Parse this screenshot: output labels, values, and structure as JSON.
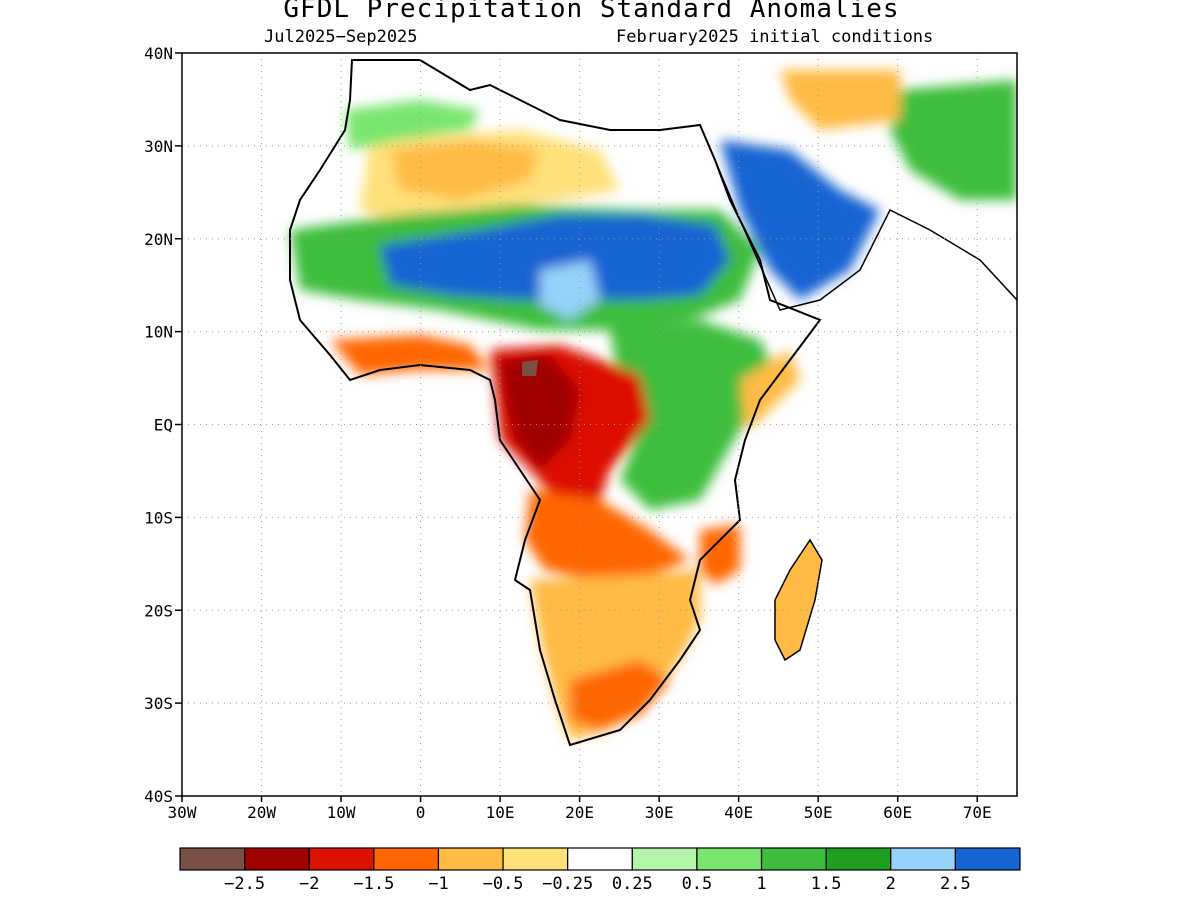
{
  "title": "GFDL Precipitation Standard Anomalies",
  "subtitle_left": "Jul2025−Sep2025",
  "subtitle_right": "February2025 initial conditions",
  "map": {
    "lon_range": [
      -30,
      75
    ],
    "lat_range": [
      -40,
      40
    ],
    "grid": "dotted",
    "lat_ticks": [
      {
        "value": 40,
        "label": "40N"
      },
      {
        "value": 30,
        "label": "30N"
      },
      {
        "value": 20,
        "label": "20N"
      },
      {
        "value": 10,
        "label": "10N"
      },
      {
        "value": 0,
        "label": "EQ"
      },
      {
        "value": -10,
        "label": "10S"
      },
      {
        "value": -20,
        "label": "20S"
      },
      {
        "value": -30,
        "label": "30S"
      },
      {
        "value": -40,
        "label": "40S"
      }
    ],
    "lon_ticks": [
      {
        "value": -30,
        "label": "30W"
      },
      {
        "value": -20,
        "label": "20W"
      },
      {
        "value": -10,
        "label": "10W"
      },
      {
        "value": 0,
        "label": "0"
      },
      {
        "value": 10,
        "label": "10E"
      },
      {
        "value": 20,
        "label": "20E"
      },
      {
        "value": 30,
        "label": "30E"
      },
      {
        "value": 40,
        "label": "40E"
      },
      {
        "value": 50,
        "label": "50E"
      },
      {
        "value": 60,
        "label": "60E"
      },
      {
        "value": 70,
        "label": "70E"
      }
    ],
    "anomaly_regions": [
      {
        "name": "congo-basin-dry",
        "level": -2,
        "color": "#a00000",
        "lon": 16,
        "lat": 2
      },
      {
        "name": "central-africa-dry",
        "level": -1.5,
        "color": "#dd1100",
        "lon": 18,
        "lat": -1
      },
      {
        "name": "angola-zambia-dry",
        "level": -1,
        "color": "#ff6600",
        "lon": 17,
        "lat": -12
      },
      {
        "name": "southern-africa-dry",
        "level": -0.5,
        "color": "#ffbb44",
        "lon": 24,
        "lat": -23
      },
      {
        "name": "sahara-slightly-dry",
        "level": -0.25,
        "color": "#ffe17a",
        "lon": 5,
        "lat": 28
      },
      {
        "name": "sahel-wet",
        "level": 2.5,
        "color": "#1464d2",
        "lon": 15,
        "lat": 17
      },
      {
        "name": "sudan-wet",
        "level": 2.5,
        "color": "#1464d2",
        "lon": 30,
        "lat": 17
      },
      {
        "name": "arabia-wet",
        "level": 2,
        "color": "#96d2fa",
        "lon": 44,
        "lat": 21
      },
      {
        "name": "east-africa-wet",
        "level": 1,
        "color": "#3cbe3c",
        "lon": 32,
        "lat": 0
      },
      {
        "name": "middle-east-wet",
        "level": 1,
        "color": "#3cbe3c",
        "lon": 62,
        "lat": 32
      }
    ]
  },
  "colorbar": {
    "colors": [
      "#7a5046",
      "#a00000",
      "#dd1100",
      "#ff6600",
      "#ffbb44",
      "#ffe17a",
      "#ffffff",
      "#b4f5aa",
      "#78e66e",
      "#3cbe3c",
      "#1ea01e",
      "#96d2fa",
      "#1464d2"
    ],
    "labels": [
      "−2.5",
      "−2",
      "−1.5",
      "−1",
      "−0.5",
      "−0.25",
      "0.25",
      "0.5",
      "1",
      "1.5",
      "2",
      "2.5"
    ]
  }
}
